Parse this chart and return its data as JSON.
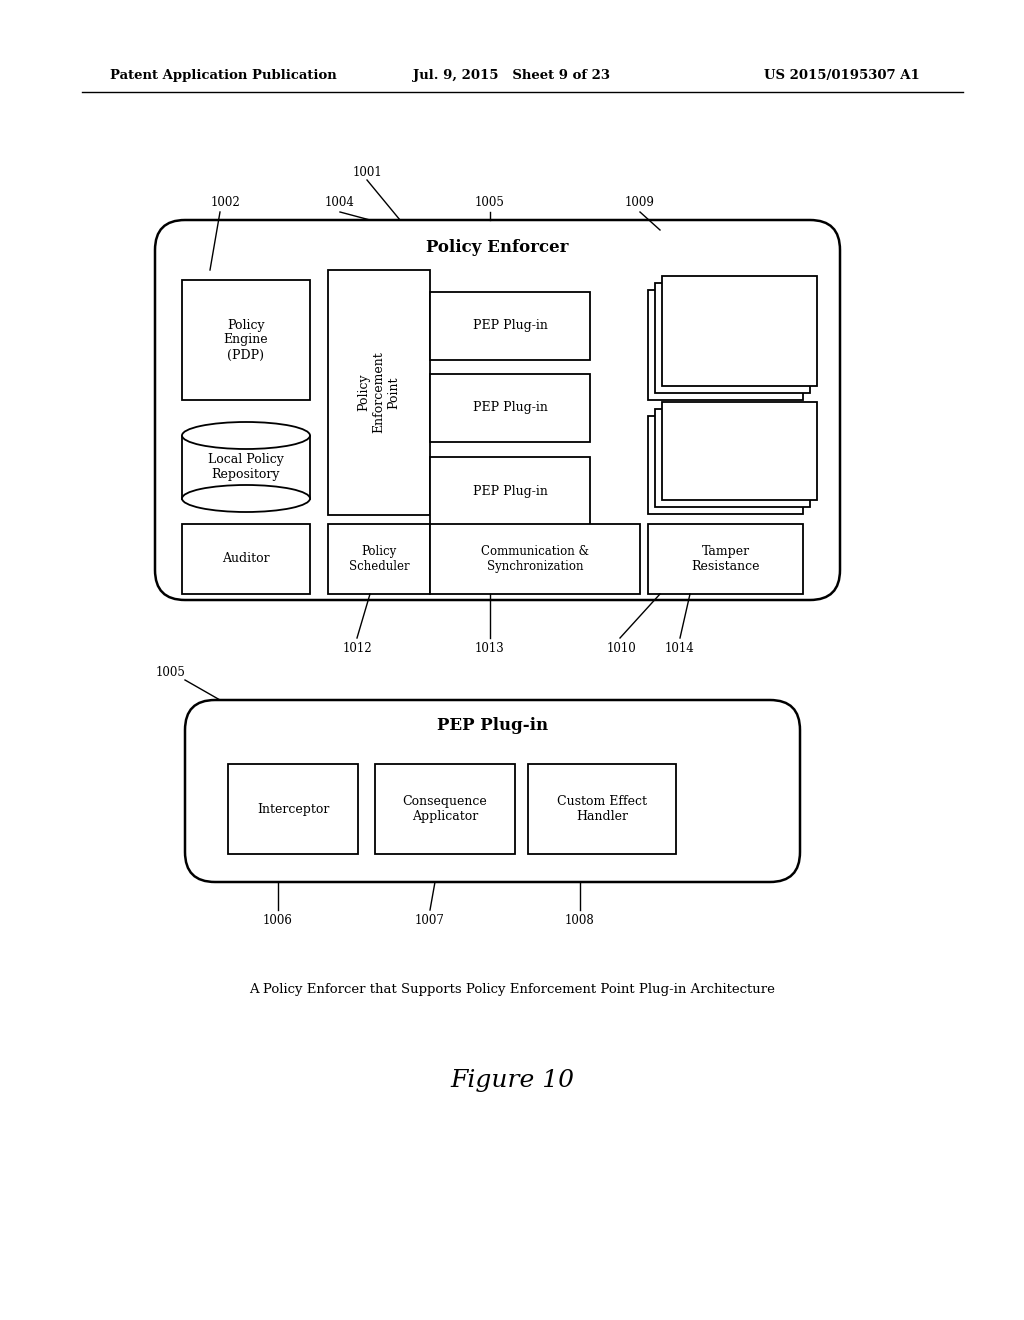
{
  "header_left": "Patent Application Publication",
  "header_mid": "Jul. 9, 2015   Sheet 9 of 23",
  "header_right": "US 2015/0195307 A1",
  "caption": "A Policy Enforcer that Supports Policy Enforcement Point Plug-in Architecture",
  "figure_label": "Figure 10",
  "bg_color": "#ffffff",
  "line_color": "#000000"
}
